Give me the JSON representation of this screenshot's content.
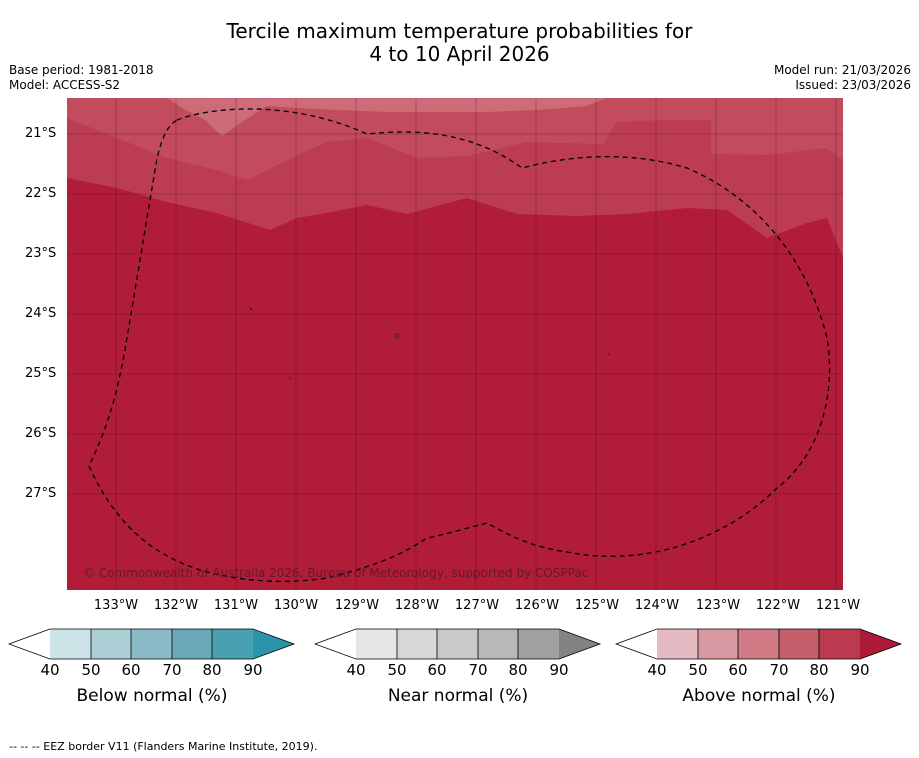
{
  "title": {
    "line1": "Tercile maximum temperature probabilities for",
    "line2": "4 to 10 April 2026"
  },
  "meta": {
    "base_period": "Base period: 1981-2018",
    "model": "Model: ACCESS-S2",
    "model_run": "Model run: 21/03/2026",
    "issued": "Issued: 23/03/2026"
  },
  "map": {
    "latitude_labels": [
      "21°S",
      "22°S",
      "23°S",
      "24°S",
      "25°S",
      "26°S",
      "27°S"
    ],
    "longitude_labels": [
      "133°W",
      "132°W",
      "131°W",
      "130°W",
      "129°W",
      "128°W",
      "127°W",
      "126°W",
      "125°W",
      "124°W",
      "123°W",
      "122°W",
      "121°W"
    ],
    "copyright": "© Commonwealth of Australia 2026, Bureau of Meteorology, supported by COSPPac",
    "colors": {
      "band_60_70": "#cd6b78",
      "band_70_80": "#c24b5d",
      "band_80_90": "#bc3c51",
      "band_90_plus": "#b11c39"
    }
  },
  "colorbars": [
    {
      "label": "Below normal (%)",
      "ticks": [
        "40",
        "50",
        "60",
        "70",
        "80",
        "90"
      ],
      "colors": [
        "#ffffff",
        "#cce3e8",
        "#acced5",
        "#8bbbc6",
        "#6aaab8",
        "#49a0b0",
        "#2a94aa"
      ]
    },
    {
      "label": "Near normal (%)",
      "ticks": [
        "40",
        "50",
        "60",
        "70",
        "80",
        "90"
      ],
      "colors": [
        "#ffffff",
        "#e6e6e6",
        "#d8d8d8",
        "#c9c9c9",
        "#b8b8b8",
        "#a1a1a1",
        "#838383"
      ]
    },
    {
      "label": "Above normal (%)",
      "ticks": [
        "40",
        "50",
        "60",
        "70",
        "80",
        "90"
      ],
      "colors": [
        "#ffffff",
        "#e5bac2",
        "#da9aa4",
        "#cf7a85",
        "#c55e6c",
        "#bb3a50",
        "#ac1a38"
      ]
    }
  ],
  "footer": "--  --  -- EEZ border V11 (Flanders Marine Institute, 2019)."
}
